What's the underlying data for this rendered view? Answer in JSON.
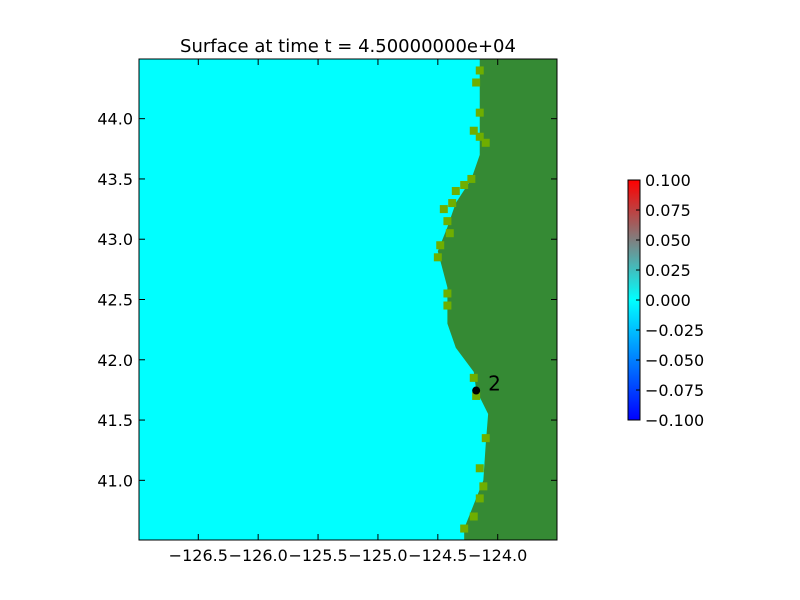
{
  "chart_data": {
    "type": "heatmap",
    "title": "Surface at time t = 4.50000000e+04",
    "xlabel": "",
    "ylabel": "",
    "xlim": [
      -126.995,
      -123.505
    ],
    "ylim": [
      40.505,
      44.495
    ],
    "x_ticks": [
      {
        "value": -126.5,
        "label": "−126.5"
      },
      {
        "value": -126.0,
        "label": "−126.0"
      },
      {
        "value": -125.5,
        "label": "−125.5"
      },
      {
        "value": -125.0,
        "label": "−125.0"
      },
      {
        "value": -124.5,
        "label": "−124.5"
      },
      {
        "value": -124.0,
        "label": "−124.0"
      }
    ],
    "y_ticks": [
      {
        "value": 41.0,
        "label": "41.0"
      },
      {
        "value": 41.5,
        "label": "41.5"
      },
      {
        "value": 42.0,
        "label": "42.0"
      },
      {
        "value": 42.5,
        "label": "42.5"
      },
      {
        "value": 43.0,
        "label": "43.0"
      },
      {
        "value": 43.5,
        "label": "43.5"
      },
      {
        "value": 44.0,
        "label": "44.0"
      }
    ],
    "grid": false,
    "ocean_color": "#00ffff",
    "land_color": "#358a34",
    "coast_color": "#6fae00",
    "cell_size_deg": 0.0665,
    "coastline_west_of_land": [
      [
        44.0,
        -124.15
      ],
      [
        43.7,
        -124.15
      ],
      [
        43.5,
        -124.22
      ],
      [
        43.3,
        -124.35
      ],
      [
        43.1,
        -124.42
      ],
      [
        42.9,
        -124.5
      ],
      [
        42.6,
        -124.42
      ],
      [
        42.3,
        -124.42
      ],
      [
        42.1,
        -124.35
      ],
      [
        41.9,
        -124.2
      ],
      [
        41.75,
        -124.18
      ],
      [
        41.55,
        -124.08
      ],
      [
        41.3,
        -124.1
      ],
      [
        41.0,
        -124.12
      ],
      [
        40.8,
        -124.2
      ],
      [
        40.6,
        -124.28
      ]
    ],
    "coast_cells": [
      [
        44.4,
        -124.15
      ],
      [
        44.3,
        -124.18
      ],
      [
        44.05,
        -124.15
      ],
      [
        43.9,
        -124.2
      ],
      [
        43.85,
        -124.15
      ],
      [
        43.8,
        -124.1
      ],
      [
        43.5,
        -124.22
      ],
      [
        43.45,
        -124.28
      ],
      [
        43.4,
        -124.35
      ],
      [
        43.3,
        -124.38
      ],
      [
        43.25,
        -124.45
      ],
      [
        43.15,
        -124.42
      ],
      [
        43.05,
        -124.4
      ],
      [
        42.95,
        -124.48
      ],
      [
        42.85,
        -124.5
      ],
      [
        42.55,
        -124.42
      ],
      [
        42.45,
        -124.42
      ],
      [
        41.85,
        -124.2
      ],
      [
        41.7,
        -124.18
      ],
      [
        41.35,
        -124.1
      ],
      [
        41.1,
        -124.15
      ],
      [
        40.95,
        -124.12
      ],
      [
        40.85,
        -124.15
      ],
      [
        40.7,
        -124.2
      ],
      [
        40.6,
        -124.28
      ]
    ],
    "gauge": {
      "label": "2",
      "lon": -124.18,
      "lat": 41.745
    },
    "colorbar": {
      "min": -0.1,
      "max": 0.1,
      "colors": [
        "#0000ff",
        "#00ffff",
        "#ff0000"
      ],
      "ticks": [
        {
          "value": 0.1,
          "label": "0.100"
        },
        {
          "value": 0.075,
          "label": "0.075"
        },
        {
          "value": 0.05,
          "label": "0.050"
        },
        {
          "value": 0.025,
          "label": "0.025"
        },
        {
          "value": 0.0,
          "label": "0.000"
        },
        {
          "value": -0.025,
          "label": "−0.025"
        },
        {
          "value": -0.05,
          "label": "−0.050"
        },
        {
          "value": -0.075,
          "label": "−0.075"
        },
        {
          "value": -0.1,
          "label": "−0.100"
        }
      ]
    }
  }
}
